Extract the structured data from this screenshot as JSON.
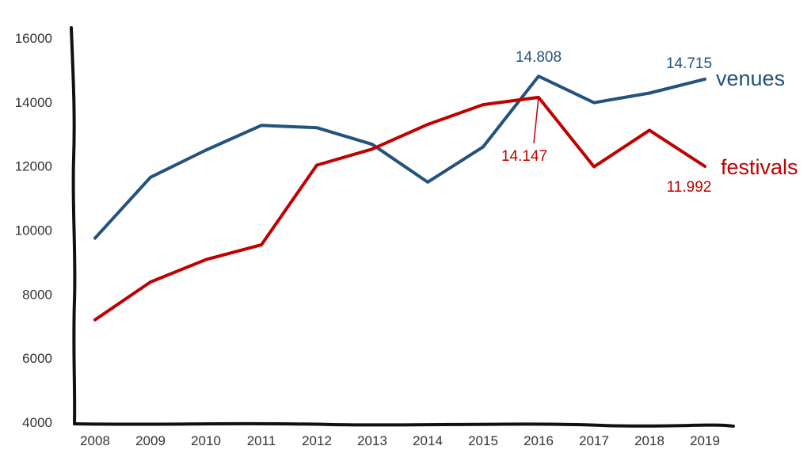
{
  "chart_data": {
    "type": "line",
    "categories": [
      "2008",
      "2009",
      "2010",
      "2011",
      "2012",
      "2013",
      "2014",
      "2015",
      "2016",
      "2017",
      "2018",
      "2019"
    ],
    "series": [
      {
        "name": "venues",
        "color": "#23527c",
        "values": [
          9750,
          11650,
          12500,
          13270,
          13200,
          12680,
          11500,
          12600,
          14808,
          13980,
          14280,
          14715
        ]
      },
      {
        "name": "festivals",
        "color": "#c00000",
        "values": [
          7200,
          8380,
          9080,
          9540,
          12030,
          12530,
          13300,
          13920,
          14147,
          11980,
          13120,
          11992
        ]
      }
    ],
    "annotations": [
      {
        "series": 0,
        "index": 8,
        "text": "14.808"
      },
      {
        "series": 0,
        "index": 11,
        "text": "14.715"
      },
      {
        "series": 1,
        "index": 8,
        "text": "14.147"
      },
      {
        "series": 1,
        "index": 11,
        "text": "11.992"
      }
    ],
    "y_ticks": [
      "4000",
      "6000",
      "8000",
      "10000",
      "12000",
      "14000",
      "16000"
    ],
    "ylim": [
      4000,
      16000
    ],
    "grid": false,
    "legend": "inline-right",
    "axis_color": "#111111"
  }
}
